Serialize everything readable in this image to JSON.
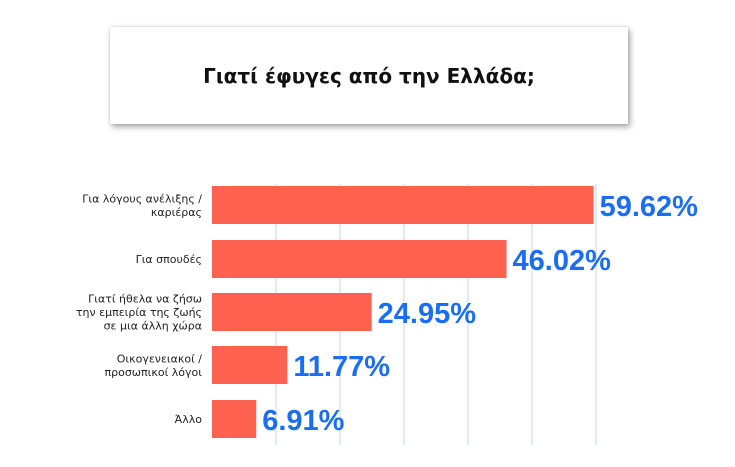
{
  "header": {
    "title": "Γιατί έφυγες από την Ελλάδα;"
  },
  "colors": {
    "bar": "#ff6150",
    "value_text": "#1a6ef5",
    "grid": "#c9d6e8"
  },
  "chart_data": {
    "type": "bar",
    "orientation": "horizontal",
    "title": "Γιατί έφυγες από την Ελλάδα;",
    "xlabel": "",
    "ylabel": "",
    "xlim": [
      0,
      60
    ],
    "grid": true,
    "categories": [
      [
        "Για λόγους ανέλιξης /",
        "καριέρας"
      ],
      [
        "Για σπουδές"
      ],
      [
        "Γιατί ήθελα να ζήσω",
        "την εμπειρία της ζωής",
        "σε μια άλλη χώρα"
      ],
      [
        "Οικογενειακοί /",
        "προσωπικοί λόγοι"
      ],
      [
        "Άλλο"
      ]
    ],
    "values": [
      59.62,
      46.02,
      24.95,
      11.77,
      6.91
    ],
    "value_labels": [
      "59.62%",
      "46.02%",
      "24.95%",
      "11.77%",
      "6.91%"
    ]
  }
}
